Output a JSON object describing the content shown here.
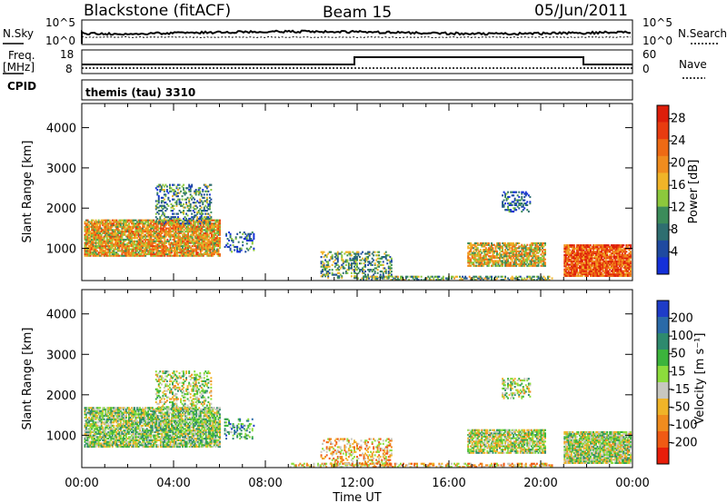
{
  "header": {
    "station": "Blackstone (fitACF)",
    "beam": "Beam 15",
    "date": "05/Jun/2011",
    "nsky_label": "N.Sky",
    "nsky_ticks": [
      "10^5",
      "10^0"
    ],
    "nsearch_label": "N.Search",
    "nsearch_ticks": [
      "10^5",
      "10^0"
    ],
    "freq_label": "Freq.",
    "freq_unit": "[MHz]",
    "freq_ticks": [
      "18",
      "8"
    ],
    "nave_label": "Nave",
    "nave_ticks": [
      "60",
      "0"
    ],
    "cpid_label": "CPID",
    "cpid_value": "themis (tau) 3310"
  },
  "chart_data": [
    {
      "type": "heatmap",
      "panel": "power",
      "ylabel": "Slant Range [km]",
      "xlabel": "",
      "x_ticks": [
        "00:00",
        "04:00",
        "08:00",
        "12:00",
        "16:00",
        "20:00",
        "00:00"
      ],
      "xlim_hours": [
        0,
        24
      ],
      "y_ticks": [
        1000,
        2000,
        3000,
        4000
      ],
      "ylim": [
        200,
        4600
      ],
      "colorbar": {
        "label": "Power [dB]",
        "ticks": [
          "4",
          "8",
          "12",
          "16",
          "20",
          "24",
          "28"
        ],
        "colors": [
          "#1430d8",
          "#1f4aa0",
          "#2e6e70",
          "#3c8c5a",
          "#8cc83c",
          "#f0b428",
          "#f08c1e",
          "#ee6a14",
          "#e83c10",
          "#dd1e0a"
        ]
      },
      "regions": [
        {
          "t": [
            0.1,
            6.0
          ],
          "r": [
            800,
            1700
          ],
          "level": 0.6,
          "density": 0.85
        },
        {
          "t": [
            3.2,
            5.6
          ],
          "r": [
            1600,
            2600
          ],
          "level": 0.3,
          "density": 0.35
        },
        {
          "t": [
            6.2,
            7.5
          ],
          "r": [
            900,
            1400
          ],
          "level": 0.2,
          "density": 0.3
        },
        {
          "t": [
            10.4,
            13.5
          ],
          "r": [
            250,
            900
          ],
          "level": 0.35,
          "density": 0.35
        },
        {
          "t": [
            16.8,
            20.2
          ],
          "r": [
            550,
            1150
          ],
          "level": 0.55,
          "density": 0.75
        },
        {
          "t": [
            18.3,
            19.5
          ],
          "r": [
            1900,
            2400
          ],
          "level": 0.2,
          "density": 0.4
        },
        {
          "t": [
            21.0,
            23.9
          ],
          "r": [
            300,
            1100
          ],
          "level": 0.8,
          "density": 0.9
        },
        {
          "t": [
            12.0,
            20.5
          ],
          "r": [
            200,
            320
          ],
          "level": 0.4,
          "density": 0.5
        }
      ]
    },
    {
      "type": "heatmap",
      "panel": "velocity",
      "ylabel": "Slant Range [km]",
      "xlabel": "Time UT",
      "x_ticks": [
        "00:00",
        "04:00",
        "08:00",
        "12:00",
        "16:00",
        "20:00",
        "00:00"
      ],
      "xlim_hours": [
        0,
        24
      ],
      "y_ticks": [
        1000,
        2000,
        3000,
        4000
      ],
      "ylim": [
        200,
        4600
      ],
      "colorbar": {
        "label": "Velocity [m s⁻¹]",
        "ticks": [
          "200",
          "100",
          "50",
          "15",
          "-15",
          "-50",
          "-100",
          "-200"
        ],
        "colors": [
          "#1e3cc8",
          "#2a6aa8",
          "#2e8a6e",
          "#3cb43c",
          "#8cdc3c",
          "#c8c8c0",
          "#f0b428",
          "#f08c1e",
          "#f05a14",
          "#e81e0a"
        ]
      },
      "regions": [
        {
          "t": [
            0.1,
            6.0
          ],
          "r": [
            700,
            1700
          ],
          "level": 0.45,
          "density": 0.8
        },
        {
          "t": [
            3.2,
            5.6
          ],
          "r": [
            1600,
            2600
          ],
          "level": 0.5,
          "density": 0.35
        },
        {
          "t": [
            6.2,
            7.5
          ],
          "r": [
            900,
            1400
          ],
          "level": 0.3,
          "density": 0.3
        },
        {
          "t": [
            10.4,
            13.5
          ],
          "r": [
            250,
            900
          ],
          "level": 0.65,
          "density": 0.35
        },
        {
          "t": [
            16.8,
            20.2
          ],
          "r": [
            550,
            1150
          ],
          "level": 0.5,
          "density": 0.75
        },
        {
          "t": [
            18.3,
            19.5
          ],
          "r": [
            1900,
            2400
          ],
          "level": 0.5,
          "density": 0.4
        },
        {
          "t": [
            21.0,
            23.9
          ],
          "r": [
            300,
            1100
          ],
          "level": 0.5,
          "density": 0.9
        },
        {
          "t": [
            9.0,
            20.5
          ],
          "r": [
            200,
            320
          ],
          "level": 0.65,
          "density": 0.5
        }
      ]
    }
  ]
}
